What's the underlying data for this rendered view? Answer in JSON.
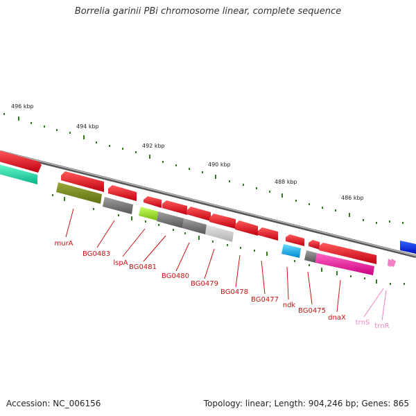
{
  "title": "Borrelia garinii PBi chromosome linear, complete sequence",
  "footer": {
    "accession": "Accession: NC_006156",
    "summary": "Topology: linear; Length: 904,246 bp; Genes: 865"
  },
  "colors": {
    "backbone": "#888888",
    "forward_ticks": "#2e7d1e",
    "gene_red": "#e8001a",
    "gene_label_red": "#cc1111",
    "trna_pink": "#f080c0"
  },
  "ruler": [
    {
      "label": "496 kbp"
    },
    {
      "label": "494 kbp"
    },
    {
      "label": "492 kbp"
    },
    {
      "label": "490 kbp"
    },
    {
      "label": "488 kbp"
    },
    {
      "label": "486 kbp"
    }
  ],
  "gene_labels": [
    {
      "text": "murA",
      "color": "#cc1111"
    },
    {
      "text": "BG0483",
      "color": "#cc1111"
    },
    {
      "text": "lspA",
      "color": "#cc1111"
    },
    {
      "text": "BG0481",
      "color": "#cc1111"
    },
    {
      "text": "BG0480",
      "color": "#cc1111"
    },
    {
      "text": "BG0479",
      "color": "#cc1111"
    },
    {
      "text": "BG0478",
      "color": "#cc1111"
    },
    {
      "text": "BG0477",
      "color": "#cc1111"
    },
    {
      "text": "ndk",
      "color": "#cc1111"
    },
    {
      "text": "BG0475",
      "color": "#cc1111"
    },
    {
      "text": "dnaX",
      "color": "#cc1111"
    },
    {
      "text": "trnS",
      "color": "#ee88c4"
    },
    {
      "text": "trnR",
      "color": "#ee88c4"
    }
  ]
}
